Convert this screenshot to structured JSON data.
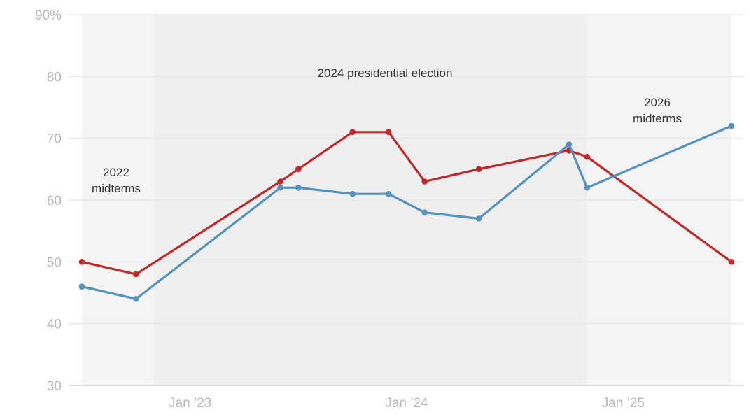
{
  "chart_data": {
    "type": "line",
    "title": "",
    "xlabel": "",
    "ylabel": "",
    "ylim": [
      30,
      90
    ],
    "yticks": [
      30,
      40,
      50,
      60,
      70,
      80,
      90
    ],
    "ytick_labels": [
      "30",
      "40",
      "50",
      "60",
      "70",
      "80",
      "90%"
    ],
    "xticks": [
      {
        "date": "2023-01",
        "label": "Jan ’23"
      },
      {
        "date": "2024-01",
        "label": "Jan ’24"
      },
      {
        "date": "2025-01",
        "label": "Jan ’25"
      }
    ],
    "xlim": [
      "2022-07",
      "2025-07"
    ],
    "grid": true,
    "legend": "none",
    "regions": [
      {
        "name": "2022 midterms",
        "label_lines": [
          "2022",
          "midterms"
        ],
        "start": "2022-07",
        "end": "2022-11",
        "color": "#f5f5f5"
      },
      {
        "name": "2024 presidential election",
        "label_lines": [
          "2024 presidential election"
        ],
        "start": "2022-11",
        "end": "2024-11",
        "color": "#efefef"
      },
      {
        "name": "2026 midterms",
        "label_lines": [
          "2026",
          "midterms"
        ],
        "start": "2024-11",
        "end": "2025-07",
        "color": "#f5f5f5"
      }
    ],
    "x": [
      "2022-07",
      "2022-10",
      "2023-06",
      "2023-07",
      "2023-10",
      "2023-12",
      "2024-02",
      "2024-05",
      "2024-10",
      "2024-11",
      "2025-07"
    ],
    "series": [
      {
        "name": "Red series",
        "color": "#c0282a",
        "values": [
          50,
          48,
          63,
          65,
          71,
          71,
          63,
          65,
          68,
          67,
          50
        ]
      },
      {
        "name": "Blue series",
        "color": "#5293c1",
        "values": [
          46,
          44,
          62,
          62,
          61,
          61,
          58,
          57,
          69,
          62,
          72
        ]
      }
    ]
  }
}
